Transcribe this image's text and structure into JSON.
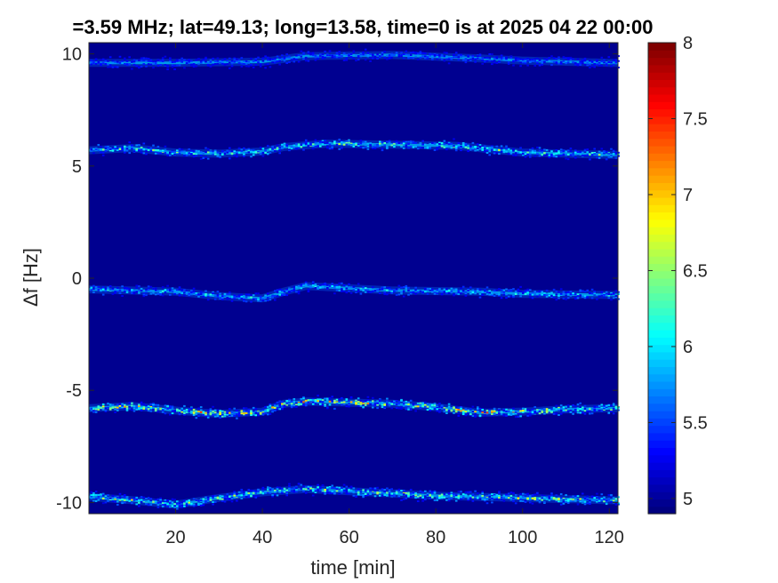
{
  "chart_data": {
    "type": "heatmap",
    "title": "=3.59 MHz;  lat=49.13; long=13.58, time=0 is at 2025 04 22 00:00",
    "xlabel": "time [min]",
    "ylabel": "Δf [Hz]",
    "xlim": [
      0,
      122
    ],
    "ylim": [
      -10.5,
      10.5
    ],
    "x_ticks": [
      "20",
      "40",
      "60",
      "80",
      "100",
      "120"
    ],
    "y_ticks": [
      "-10",
      "-5",
      "0",
      "5",
      "10"
    ],
    "colorbar": {
      "range": [
        4.9,
        8
      ],
      "ticks": [
        "5",
        "5.5",
        "6",
        "6.5",
        "7",
        "7.5",
        "8"
      ],
      "colormap": "jet"
    },
    "background_value": 4.95,
    "bands": [
      {
        "name": "band_10",
        "points": [
          [
            0,
            9.6
          ],
          [
            20,
            9.6
          ],
          [
            40,
            9.65
          ],
          [
            50,
            9.9
          ],
          [
            70,
            9.95
          ],
          [
            90,
            9.8
          ],
          [
            100,
            9.7
          ],
          [
            120,
            9.6
          ]
        ],
        "peak": 5.8
      },
      {
        "name": "band_5",
        "points": [
          [
            0,
            5.7
          ],
          [
            10,
            5.8
          ],
          [
            20,
            5.6
          ],
          [
            30,
            5.55
          ],
          [
            40,
            5.65
          ],
          [
            45,
            5.85
          ],
          [
            55,
            6.0
          ],
          [
            70,
            5.95
          ],
          [
            85,
            5.9
          ],
          [
            100,
            5.6
          ],
          [
            110,
            5.55
          ],
          [
            120,
            5.5
          ]
        ],
        "peak": 6.9
      },
      {
        "name": "band_0",
        "points": [
          [
            0,
            -0.5
          ],
          [
            20,
            -0.6
          ],
          [
            30,
            -0.8
          ],
          [
            40,
            -0.9
          ],
          [
            45,
            -0.6
          ],
          [
            50,
            -0.35
          ],
          [
            70,
            -0.55
          ],
          [
            90,
            -0.6
          ],
          [
            100,
            -0.7
          ],
          [
            120,
            -0.75
          ]
        ],
        "peak": 6.4
      },
      {
        "name": "band_m5",
        "points": [
          [
            0,
            -5.8
          ],
          [
            10,
            -5.7
          ],
          [
            20,
            -5.9
          ],
          [
            30,
            -6.05
          ],
          [
            40,
            -5.95
          ],
          [
            45,
            -5.6
          ],
          [
            50,
            -5.5
          ],
          [
            60,
            -5.55
          ],
          [
            70,
            -5.6
          ],
          [
            80,
            -5.75
          ],
          [
            90,
            -6.0
          ],
          [
            100,
            -5.95
          ],
          [
            110,
            -5.85
          ],
          [
            120,
            -5.8
          ]
        ],
        "peak": 7.6
      },
      {
        "name": "band_m10",
        "points": [
          [
            0,
            -9.75
          ],
          [
            10,
            -9.9
          ],
          [
            20,
            -10.1
          ],
          [
            30,
            -9.8
          ],
          [
            40,
            -9.55
          ],
          [
            50,
            -9.4
          ],
          [
            60,
            -9.5
          ],
          [
            80,
            -9.7
          ],
          [
            100,
            -9.8
          ],
          [
            120,
            -9.9
          ]
        ],
        "peak": 7.1
      }
    ]
  }
}
